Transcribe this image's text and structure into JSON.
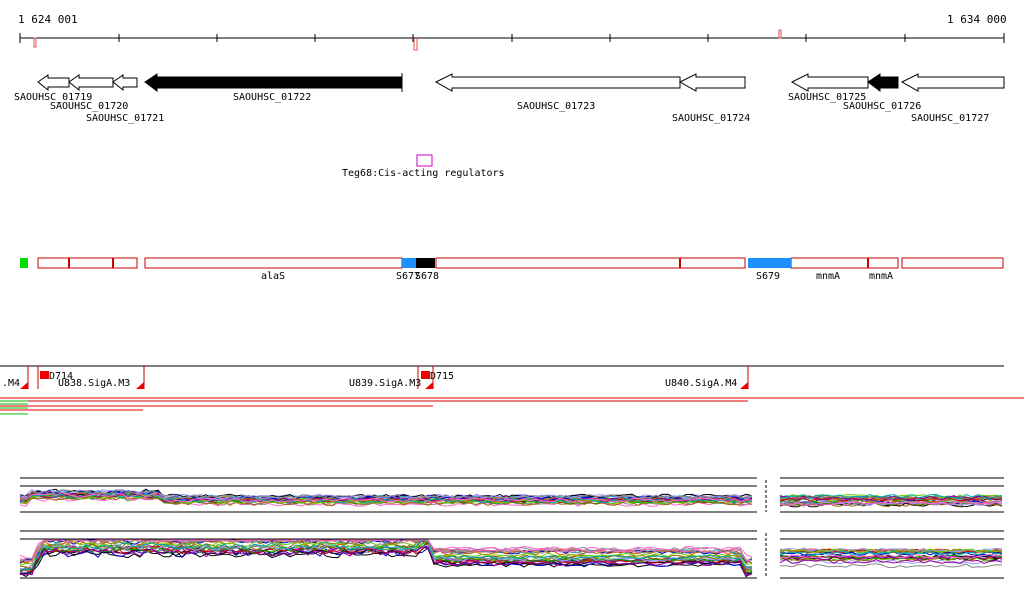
{
  "ruler": {
    "start_label": "1 624 001",
    "end_label": "1 634 000"
  },
  "genes": [
    {
      "label": "SAOUHSC_01719",
      "filled": false
    },
    {
      "label": "SAOUHSC_01720",
      "filled": false
    },
    {
      "label": "SAOUHSC_01721",
      "filled": false
    },
    {
      "label": "SAOUHSC_01722",
      "filled": true
    },
    {
      "label": "SAOUHSC_01723",
      "filled": false
    },
    {
      "label": "SAOUHSC_01724",
      "filled": false
    },
    {
      "label": "SAOUHSC_01725",
      "filled": false
    },
    {
      "label": "SAOUHSC_01726",
      "filled": true
    },
    {
      "label": "SAOUHSC_01727",
      "filled": false
    }
  ],
  "regulator": {
    "label": "Teg68:Cis-acting regulators"
  },
  "transcripts": {
    "labels": [
      "alaS",
      "S677",
      "S678",
      "S679",
      "mnmA",
      "mnmA"
    ]
  },
  "sigma_track": {
    "labels": [
      ".M4",
      "U838.SigA.M3",
      "U839.SigA.M3",
      "U840.SigA.M4",
      "D714",
      "D715"
    ]
  },
  "colors": {
    "gene_outline": "#000000",
    "transcript_outline": "#cc0000",
    "regulator_box": "#cc00cc",
    "blue_segment": "#1e90ff",
    "green_marker": "#00dd00",
    "red_marker": "#ee0000"
  }
}
